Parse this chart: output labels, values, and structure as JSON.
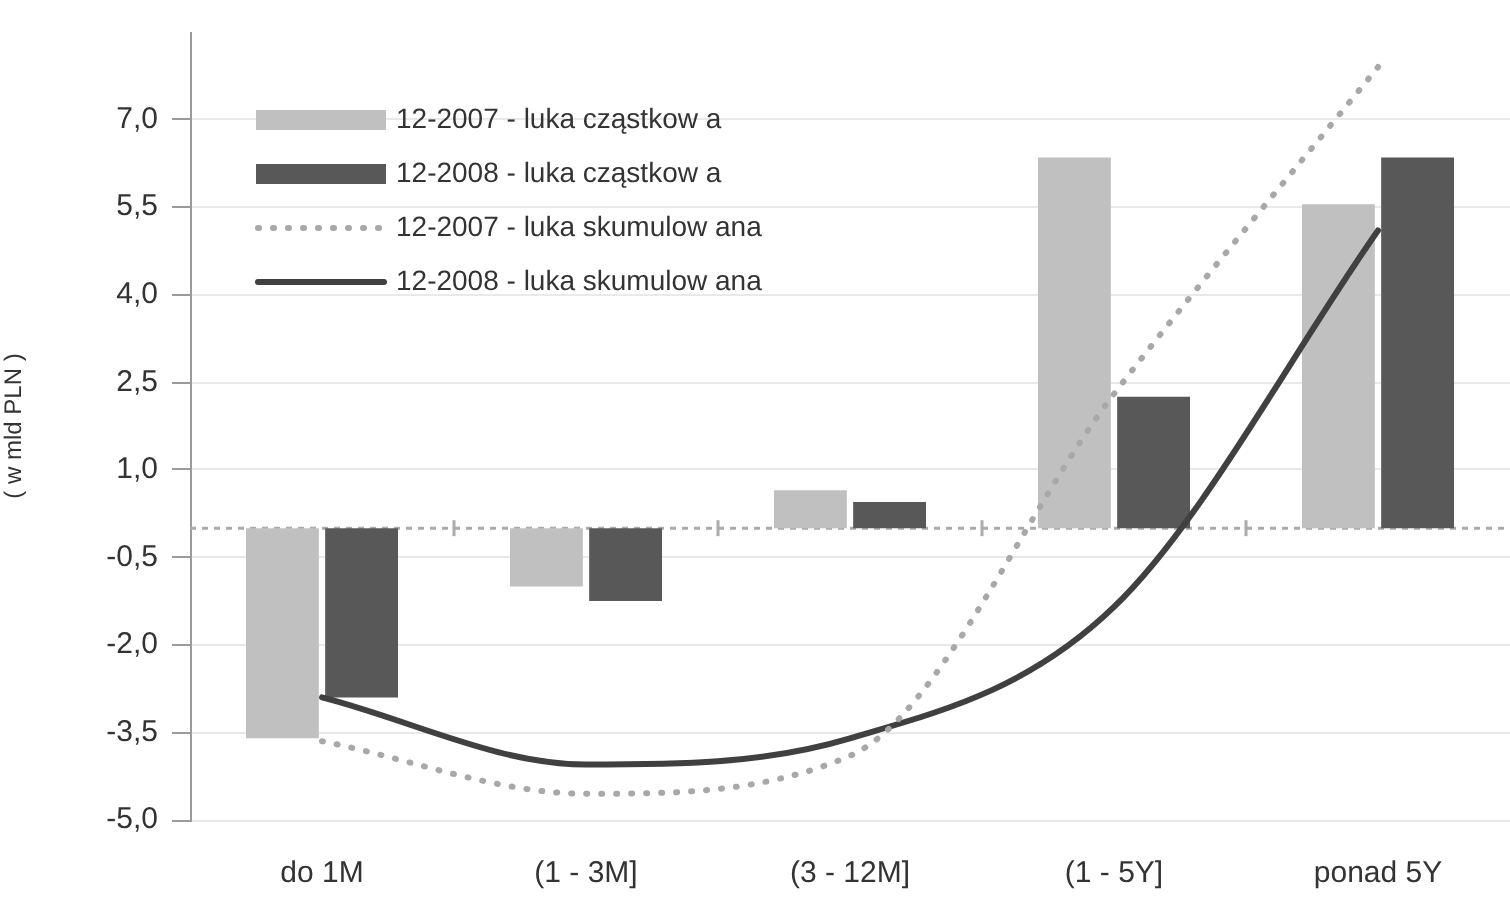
{
  "chart_data": {
    "type": "bar",
    "ylabel": "( w mld PLN )",
    "categories": [
      "do 1M",
      "(1 - 3M]",
      "(3 - 12M]",
      "(1 - 5Y]",
      "ponad 5Y"
    ],
    "series": [
      {
        "name": "12-2007 - luka cząstkow a",
        "color": "#c0c0c0",
        "values": [
          -3.6,
          -1.0,
          0.65,
          6.35,
          5.55
        ]
      },
      {
        "name": "12-2008 - luka cząstkow a",
        "color": "#585858",
        "values": [
          -2.9,
          -1.25,
          0.45,
          2.25,
          6.35
        ]
      },
      {
        "name": "12-2007 - luka skumulow ana",
        "type": "line",
        "color": "#a8a8a8",
        "line_style": "dotted",
        "values": [
          -3.65,
          -4.55,
          -3.9,
          2.3,
          7.9
        ]
      },
      {
        "name": "12-2008 - luka skumulow ana",
        "type": "line",
        "color": "#404040",
        "line_style": "solid",
        "values": [
          -2.9,
          -4.05,
          -3.6,
          -1.35,
          5.1
        ]
      }
    ],
    "ylim": [
      -5,
      8.5
    ],
    "yticks": [
      {
        "value": -5,
        "label": "-5,0"
      },
      {
        "value": -3.5,
        "label": "-3,5"
      },
      {
        "value": -2,
        "label": "-2,0"
      },
      {
        "value": -0.5,
        "label": "-0,5"
      },
      {
        "value": 1,
        "label": "1,0"
      },
      {
        "value": 2.5,
        "label": "2,5"
      },
      {
        "value": 4,
        "label": "4,0"
      },
      {
        "value": 5.5,
        "label": "5,5"
      },
      {
        "value": 7,
        "label": "7,0"
      }
    ],
    "ref_lines": [
      {
        "axis": "y",
        "value": 0,
        "color": "#aaaaaa",
        "line_style": "dashed"
      }
    ],
    "grid": "y",
    "legend": "top left",
    "marker": "none"
  }
}
